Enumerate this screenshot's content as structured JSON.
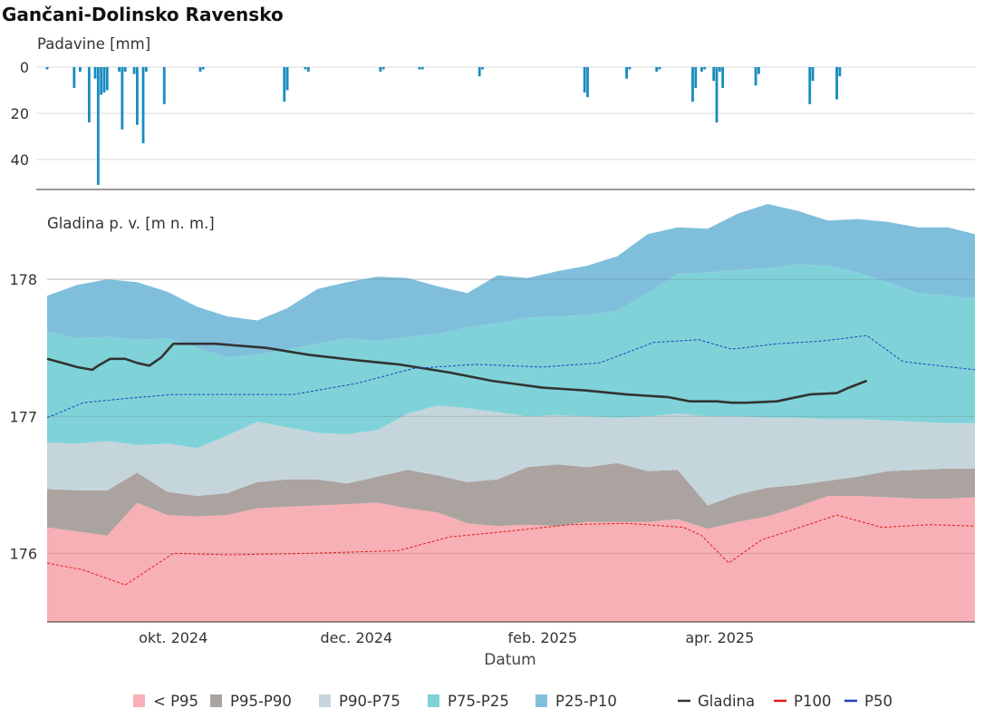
{
  "chart_data": [
    {
      "type": "bar",
      "title": "Gančani-Dolinsko Ravensko",
      "ylabel": "Padavine [mm]",
      "ylim": [
        0,
        53
      ],
      "y_reversed": true,
      "yticks": [
        0,
        20,
        40
      ],
      "x": [
        "2024-08-20",
        "2024-08-29",
        "2024-08-31",
        "2024-09-03",
        "2024-09-05",
        "2024-09-06",
        "2024-09-07",
        "2024-09-08",
        "2024-09-09",
        "2024-09-13",
        "2024-09-14",
        "2024-09-15",
        "2024-09-18",
        "2024-09-19",
        "2024-09-21",
        "2024-09-22",
        "2024-09-28",
        "2024-10-10",
        "2024-10-11",
        "2024-11-07",
        "2024-11-08",
        "2024-11-14",
        "2024-11-15",
        "2024-12-09",
        "2024-12-10",
        "2024-12-22",
        "2024-12-23",
        "2025-01-11",
        "2025-01-12",
        "2025-02-15",
        "2025-02-16",
        "2025-03-01",
        "2025-03-02",
        "2025-03-11",
        "2025-03-12",
        "2025-03-23",
        "2025-03-24",
        "2025-03-26",
        "2025-03-27",
        "2025-03-30",
        "2025-03-31",
        "2025-04-01",
        "2025-04-02",
        "2025-04-13",
        "2025-04-14",
        "2025-05-01",
        "2025-05-02",
        "2025-05-10",
        "2025-05-11"
      ],
      "values": [
        1,
        9,
        2,
        24,
        5,
        51,
        12,
        11,
        10,
        2,
        27,
        2,
        3,
        25,
        33,
        2,
        16,
        2,
        1,
        15,
        10,
        1,
        2,
        2,
        1,
        1,
        1,
        4,
        1,
        11,
        13,
        5,
        1,
        2,
        1,
        15,
        9,
        2,
        1,
        6,
        24,
        2,
        9,
        8,
        3,
        16,
        6,
        14,
        4
      ],
      "bar_color": "#1a8cbf"
    },
    {
      "type": "area",
      "ylabel": "Gladina p. v. [m n. m.]",
      "xlabel": "Datum",
      "ylim": [
        175.5,
        178.57
      ],
      "yticks": [
        176,
        177,
        178
      ],
      "x_ticks": [
        {
          "date": "2024-10-01",
          "label": "okt. 2024"
        },
        {
          "date": "2024-12-01",
          "label": "dec. 2024"
        },
        {
          "date": "2025-02-01",
          "label": "feb. 2025"
        },
        {
          "date": "2025-04-01",
          "label": "apr. 2025"
        }
      ],
      "x_range": [
        "2024-08-20",
        "2025-06-25"
      ],
      "dates": [
        "2024-08-20",
        "2024-08-30",
        "2024-09-09",
        "2024-09-19",
        "2024-09-29",
        "2024-10-09",
        "2024-10-19",
        "2024-10-29",
        "2024-11-08",
        "2024-11-18",
        "2024-11-28",
        "2024-12-08",
        "2024-12-18",
        "2024-12-28",
        "2025-01-07",
        "2025-01-17",
        "2025-01-27",
        "2025-02-06",
        "2025-02-16",
        "2025-02-26",
        "2025-03-08",
        "2025-03-18",
        "2025-03-28",
        "2025-04-07",
        "2025-04-17",
        "2025-04-27",
        "2025-05-07",
        "2025-05-17",
        "2025-05-27",
        "2025-06-06",
        "2025-06-16",
        "2025-06-25"
      ],
      "bands": [
        {
          "name": "< P95",
          "color": "#f7b0b5",
          "lower": [
            175.5,
            175.5,
            175.5,
            175.5,
            175.5,
            175.5,
            175.5,
            175.5,
            175.5,
            175.5,
            175.5,
            175.5,
            175.5,
            175.5,
            175.5,
            175.5,
            175.5,
            175.5,
            175.5,
            175.5,
            175.5,
            175.5,
            175.5,
            175.5,
            175.5,
            175.5,
            175.5,
            175.5,
            175.5,
            175.5,
            175.5,
            175.5
          ],
          "upper": [
            176.19,
            176.16,
            176.13,
            176.37,
            176.28,
            176.27,
            176.28,
            176.33,
            176.34,
            176.35,
            176.36,
            176.37,
            176.33,
            176.3,
            176.22,
            176.2,
            176.21,
            176.2,
            176.23,
            176.23,
            176.23,
            176.25,
            176.18,
            176.23,
            176.27,
            176.34,
            176.42,
            176.42,
            176.41,
            176.4,
            176.4,
            176.41
          ]
        },
        {
          "name": "P95-P90",
          "color": "#aba3a0",
          "lower": [
            176.19,
            176.16,
            176.13,
            176.37,
            176.28,
            176.27,
            176.28,
            176.33,
            176.34,
            176.35,
            176.36,
            176.37,
            176.33,
            176.3,
            176.22,
            176.2,
            176.21,
            176.2,
            176.23,
            176.23,
            176.23,
            176.25,
            176.18,
            176.23,
            176.27,
            176.34,
            176.42,
            176.42,
            176.41,
            176.4,
            176.4,
            176.41
          ],
          "upper": [
            176.47,
            176.46,
            176.46,
            176.59,
            176.45,
            176.42,
            176.44,
            176.52,
            176.54,
            176.54,
            176.51,
            176.56,
            176.61,
            176.57,
            176.52,
            176.54,
            176.63,
            176.65,
            176.63,
            176.66,
            176.6,
            176.61,
            176.35,
            176.43,
            176.48,
            176.5,
            176.53,
            176.56,
            176.6,
            176.61,
            176.62,
            176.62
          ]
        },
        {
          "name": "P90-P75",
          "color": "#c5d5dc",
          "lower": [
            176.47,
            176.46,
            176.46,
            176.59,
            176.45,
            176.42,
            176.44,
            176.52,
            176.54,
            176.54,
            176.51,
            176.56,
            176.61,
            176.57,
            176.52,
            176.54,
            176.63,
            176.65,
            176.63,
            176.66,
            176.6,
            176.61,
            176.35,
            176.43,
            176.48,
            176.5,
            176.53,
            176.56,
            176.6,
            176.61,
            176.62,
            176.62
          ],
          "upper": [
            176.81,
            176.8,
            176.82,
            176.79,
            176.8,
            176.77,
            176.86,
            176.96,
            176.92,
            176.88,
            176.87,
            176.9,
            177.02,
            177.08,
            177.06,
            177.03,
            177.0,
            177.01,
            177.0,
            176.99,
            177.0,
            177.02,
            177.0,
            177.0,
            176.99,
            176.99,
            176.98,
            176.98,
            176.97,
            176.96,
            176.95,
            176.95
          ]
        },
        {
          "name": "P75-P25",
          "color": "#7fd3d8",
          "lower": [
            176.81,
            176.8,
            176.82,
            176.79,
            176.8,
            176.77,
            176.86,
            176.96,
            176.92,
            176.88,
            176.87,
            176.9,
            177.02,
            177.08,
            177.06,
            177.03,
            177.0,
            177.01,
            177.0,
            176.99,
            177.0,
            177.02,
            177.0,
            177.0,
            176.99,
            176.99,
            176.98,
            176.98,
            176.97,
            176.96,
            176.95,
            176.95
          ],
          "upper": [
            177.62,
            177.57,
            177.58,
            177.56,
            177.57,
            177.5,
            177.43,
            177.45,
            177.49,
            177.53,
            177.57,
            177.55,
            177.58,
            177.6,
            177.65,
            177.68,
            177.72,
            177.73,
            177.74,
            177.77,
            177.9,
            178.04,
            178.05,
            178.07,
            178.08,
            178.11,
            178.1,
            178.05,
            177.98,
            177.9,
            177.88,
            177.86
          ]
        },
        {
          "name": "P25-P10",
          "color": "#80bfdc",
          "lower": [
            177.62,
            177.57,
            177.58,
            177.56,
            177.57,
            177.5,
            177.43,
            177.45,
            177.49,
            177.53,
            177.57,
            177.55,
            177.58,
            177.6,
            177.65,
            177.68,
            177.72,
            177.73,
            177.74,
            177.77,
            177.9,
            178.04,
            178.05,
            178.07,
            178.08,
            178.11,
            178.1,
            178.05,
            177.98,
            177.9,
            177.88,
            177.86
          ],
          "upper": [
            177.88,
            177.96,
            178.0,
            177.98,
            177.91,
            177.8,
            177.73,
            177.7,
            177.79,
            177.93,
            177.98,
            178.02,
            178.01,
            177.95,
            177.9,
            178.03,
            178.01,
            178.06,
            178.1,
            178.17,
            178.33,
            178.38,
            178.37,
            178.48,
            178.55,
            178.5,
            178.43,
            178.44,
            178.42,
            178.38,
            178.38,
            178.33
          ]
        }
      ],
      "series": [
        {
          "name": "Gladina",
          "color": "#333333",
          "x": [
            "2024-08-20",
            "2024-08-25",
            "2024-08-30",
            "2024-09-04",
            "2024-09-06",
            "2024-09-10",
            "2024-09-15",
            "2024-09-19",
            "2024-09-23",
            "2024-09-27",
            "2024-10-01",
            "2024-10-15",
            "2024-11-01",
            "2024-11-15",
            "2024-12-01",
            "2024-12-15",
            "2025-01-01",
            "2025-01-15",
            "2025-02-01",
            "2025-02-15",
            "2025-03-01",
            "2025-03-15",
            "2025-03-22",
            "2025-03-26",
            "2025-03-31",
            "2025-04-05",
            "2025-04-10",
            "2025-04-20",
            "2025-05-01",
            "2025-05-10",
            "2025-05-14",
            "2025-05-20"
          ],
          "y": [
            177.42,
            177.39,
            177.36,
            177.34,
            177.37,
            177.42,
            177.42,
            177.39,
            177.37,
            177.43,
            177.53,
            177.53,
            177.5,
            177.45,
            177.41,
            177.38,
            177.32,
            177.26,
            177.21,
            177.19,
            177.16,
            177.14,
            177.11,
            177.11,
            177.11,
            177.1,
            177.1,
            177.11,
            177.16,
            177.17,
            177.21,
            177.26
          ]
        },
        {
          "name": "P100",
          "color": "#e31a1c",
          "dashed": true,
          "x": [
            "2024-08-20",
            "2024-09-01",
            "2024-09-15",
            "2024-10-01",
            "2024-10-20",
            "2024-11-15",
            "2024-12-15",
            "2025-01-01",
            "2025-01-20",
            "2025-02-10",
            "2025-03-01",
            "2025-03-20",
            "2025-03-26",
            "2025-04-04",
            "2025-04-15",
            "2025-04-25",
            "2025-05-10",
            "2025-05-25",
            "2025-06-10",
            "2025-06-25"
          ],
          "y": [
            175.93,
            175.88,
            175.77,
            176.0,
            175.99,
            176.0,
            176.02,
            176.12,
            176.16,
            176.21,
            176.22,
            176.19,
            176.13,
            175.93,
            176.1,
            176.17,
            176.28,
            176.19,
            176.21,
            176.2
          ]
        },
        {
          "name": "P50",
          "color": "#1f3fbf",
          "dashed": true,
          "x": [
            "2024-08-20",
            "2024-09-01",
            "2024-09-15",
            "2024-10-01",
            "2024-10-20",
            "2024-11-10",
            "2024-12-01",
            "2024-12-20",
            "2025-01-10",
            "2025-02-01",
            "2025-02-20",
            "2025-03-10",
            "2025-03-25",
            "2025-04-05",
            "2025-04-20",
            "2025-05-05",
            "2025-05-20",
            "2025-06-01",
            "2025-06-25"
          ],
          "y": [
            176.99,
            177.1,
            177.13,
            177.16,
            177.16,
            177.16,
            177.24,
            177.35,
            177.38,
            177.36,
            177.39,
            177.54,
            177.56,
            177.49,
            177.53,
            177.55,
            177.59,
            177.4,
            177.34
          ]
        }
      ],
      "legend": {
        "placement": "bottom",
        "items": [
          {
            "label": "< P95",
            "kind": "box",
            "color": "#f7b0b5"
          },
          {
            "label": "P95-P90",
            "kind": "box",
            "color": "#aba3a0"
          },
          {
            "label": "P90-P75",
            "kind": "box",
            "color": "#c5d5dc"
          },
          {
            "label": "P75-P25",
            "kind": "box",
            "color": "#7fd3d8"
          },
          {
            "label": "P25-P10",
            "kind": "box",
            "color": "#80bfdc"
          },
          {
            "label": "Gladina",
            "kind": "line",
            "color": "#333333"
          },
          {
            "label": "P100",
            "kind": "line",
            "color": "#e31a1c"
          },
          {
            "label": "P50",
            "kind": "line",
            "color": "#1f3fbf"
          }
        ]
      }
    }
  ]
}
